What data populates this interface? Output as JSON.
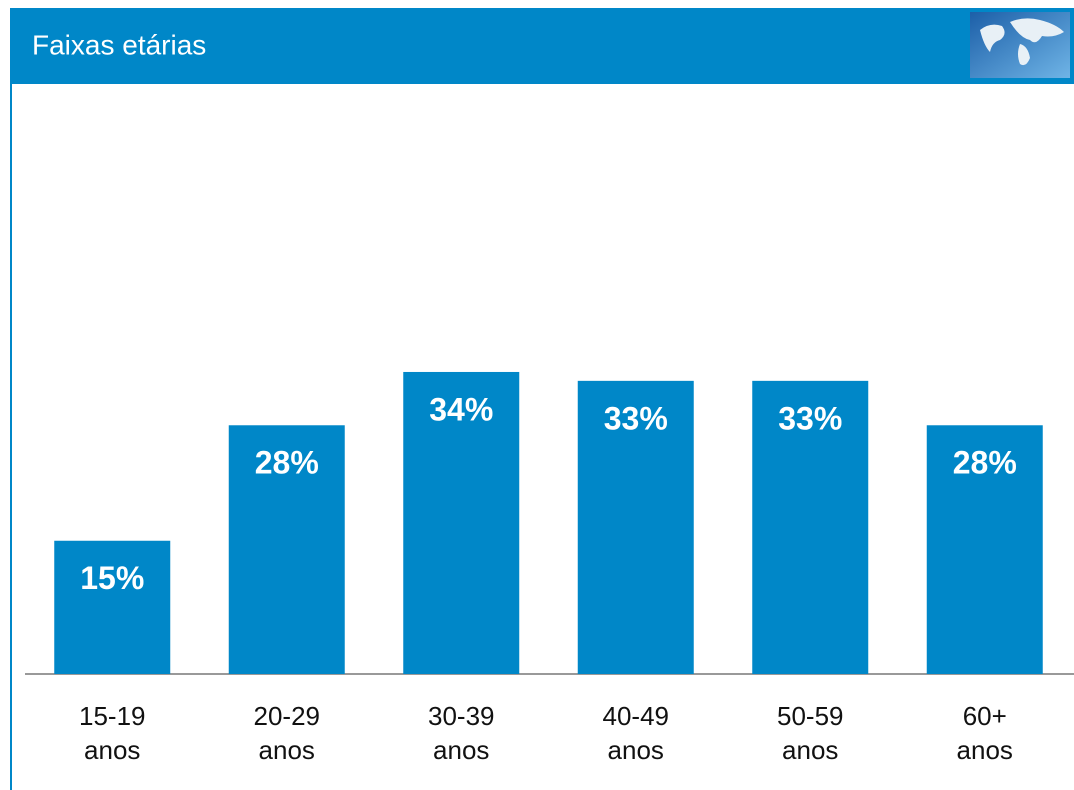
{
  "chart_data": {
    "type": "bar",
    "title": "Faixas etárias",
    "categories": [
      "15-19 anos",
      "20-29 anos",
      "30-39 anos",
      "40-49 anos",
      "50-59 anos",
      "60+ anos"
    ],
    "values": [
      15,
      28,
      34,
      33,
      33,
      28
    ],
    "value_labels": [
      "15%",
      "28%",
      "34%",
      "33%",
      "33%",
      "28%"
    ],
    "color": "#0087c8",
    "ylim": [
      0,
      60
    ]
  }
}
